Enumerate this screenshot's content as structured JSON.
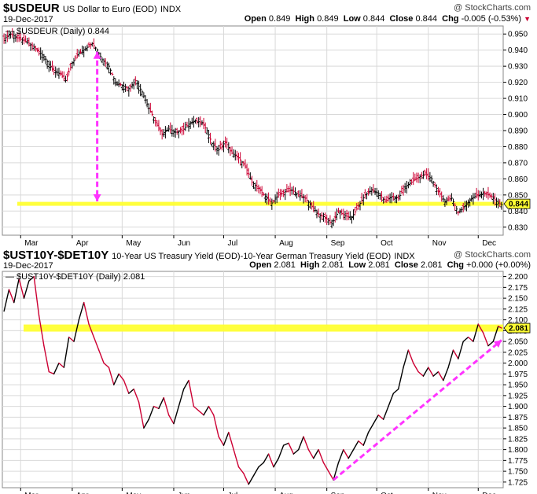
{
  "chart_data": [
    {
      "type": "ohlc",
      "symbol": "$USDEUR",
      "description": "US Dollar to Euro (EOD)",
      "exchange": "INDX",
      "date": "19-Dec-2017",
      "brand": "@ StockCharts.com",
      "ohlc": {
        "open_label": "Open",
        "open": "0.849",
        "high_label": "High",
        "high": "0.849",
        "low_label": "Low",
        "low": "0.844",
        "close_label": "Close",
        "close": "0.844",
        "chg_label": "Chg",
        "chg": "-0.005 (-0.53%)"
      },
      "legend": "$USDEUR (Daily) 0.844",
      "last_value": "0.844",
      "ylim": [
        0.825,
        0.955
      ],
      "yticks": [
        "0.830",
        "0.840",
        "0.850",
        "0.860",
        "0.870",
        "0.880",
        "0.890",
        "0.900",
        "0.910",
        "0.920",
        "0.930",
        "0.940",
        "0.950"
      ],
      "xticks": [
        {
          "label": "Mar",
          "day": 11
        },
        {
          "label": "Apr",
          "day": 42
        },
        {
          "label": "May",
          "day": 72
        },
        {
          "label": "Jun",
          "day": 103
        },
        {
          "label": "Jul",
          "day": 133
        },
        {
          "label": "Aug",
          "day": 164
        },
        {
          "label": "Sep",
          "day": 195
        },
        {
          "label": "Oct",
          "day": 225
        },
        {
          "label": "Nov",
          "day": 256
        },
        {
          "label": "Dec",
          "day": 286
        }
      ],
      "x_days": [
        0,
        301
      ],
      "series": [
        {
          "values": [
            {
              "d": 1,
              "v": 0.947
            },
            {
              "d": 5,
              "v": 0.95
            },
            {
              "d": 10,
              "v": 0.947
            },
            {
              "d": 15,
              "v": 0.945
            },
            {
              "d": 20,
              "v": 0.941
            },
            {
              "d": 25,
              "v": 0.936
            },
            {
              "d": 30,
              "v": 0.928
            },
            {
              "d": 35,
              "v": 0.925
            },
            {
              "d": 38,
              "v": 0.921
            },
            {
              "d": 42,
              "v": 0.932
            },
            {
              "d": 46,
              "v": 0.938
            },
            {
              "d": 50,
              "v": 0.941
            },
            {
              "d": 54,
              "v": 0.944
            },
            {
              "d": 57,
              "v": 0.94
            },
            {
              "d": 60,
              "v": 0.934
            },
            {
              "d": 64,
              "v": 0.93
            },
            {
              "d": 68,
              "v": 0.92
            },
            {
              "d": 72,
              "v": 0.918
            },
            {
              "d": 76,
              "v": 0.916
            },
            {
              "d": 80,
              "v": 0.921
            },
            {
              "d": 84,
              "v": 0.914
            },
            {
              "d": 88,
              "v": 0.904
            },
            {
              "d": 92,
              "v": 0.896
            },
            {
              "d": 96,
              "v": 0.888
            },
            {
              "d": 100,
              "v": 0.891
            },
            {
              "d": 104,
              "v": 0.889
            },
            {
              "d": 108,
              "v": 0.89
            },
            {
              "d": 112,
              "v": 0.894
            },
            {
              "d": 116,
              "v": 0.896
            },
            {
              "d": 120,
              "v": 0.895
            },
            {
              "d": 123,
              "v": 0.89
            },
            {
              "d": 126,
              "v": 0.882
            },
            {
              "d": 130,
              "v": 0.878
            },
            {
              "d": 134,
              "v": 0.883
            },
            {
              "d": 138,
              "v": 0.876
            },
            {
              "d": 142,
              "v": 0.873
            },
            {
              "d": 146,
              "v": 0.868
            },
            {
              "d": 150,
              "v": 0.858
            },
            {
              "d": 154,
              "v": 0.854
            },
            {
              "d": 158,
              "v": 0.849
            },
            {
              "d": 162,
              "v": 0.845
            },
            {
              "d": 166,
              "v": 0.85
            },
            {
              "d": 170,
              "v": 0.852
            },
            {
              "d": 174,
              "v": 0.853
            },
            {
              "d": 178,
              "v": 0.85
            },
            {
              "d": 182,
              "v": 0.848
            },
            {
              "d": 186,
              "v": 0.843
            },
            {
              "d": 190,
              "v": 0.838
            },
            {
              "d": 194,
              "v": 0.836
            },
            {
              "d": 198,
              "v": 0.832
            },
            {
              "d": 202,
              "v": 0.84
            },
            {
              "d": 206,
              "v": 0.837
            },
            {
              "d": 210,
              "v": 0.836
            },
            {
              "d": 214,
              "v": 0.843
            },
            {
              "d": 218,
              "v": 0.85
            },
            {
              "d": 222,
              "v": 0.853
            },
            {
              "d": 226,
              "v": 0.851
            },
            {
              "d": 230,
              "v": 0.846
            },
            {
              "d": 234,
              "v": 0.849
            },
            {
              "d": 238,
              "v": 0.848
            },
            {
              "d": 242,
              "v": 0.855
            },
            {
              "d": 246,
              "v": 0.858
            },
            {
              "d": 250,
              "v": 0.861
            },
            {
              "d": 254,
              "v": 0.863
            },
            {
              "d": 258,
              "v": 0.86
            },
            {
              "d": 262,
              "v": 0.852
            },
            {
              "d": 266,
              "v": 0.846
            },
            {
              "d": 270,
              "v": 0.848
            },
            {
              "d": 274,
              "v": 0.839
            },
            {
              "d": 278,
              "v": 0.843
            },
            {
              "d": 282,
              "v": 0.848
            },
            {
              "d": 286,
              "v": 0.85
            },
            {
              "d": 290,
              "v": 0.851
            },
            {
              "d": 294,
              "v": 0.849
            },
            {
              "d": 298,
              "v": 0.845
            },
            {
              "d": 300,
              "v": 0.844
            }
          ]
        }
      ],
      "annotations": {
        "support_line": {
          "value": 0.8445,
          "color": "#ffff33"
        },
        "arrow": {
          "day": 57,
          "from": 0.939,
          "to": 0.846,
          "color": "#ff33ff"
        }
      },
      "colors": {
        "up": "#000000",
        "down": "#cc0033",
        "grid": "#d9d9d9",
        "chg": "#cc0033"
      }
    },
    {
      "type": "line",
      "symbol": "$UST10Y-$DET10Y",
      "description": "10-Year US Treasury Yield (EOD)-10-Year German Treasury Yield (EOD)",
      "exchange": "INDX",
      "date": "19-Dec-2017",
      "brand": "@ StockCharts.com",
      "ohlc": {
        "open_label": "Open",
        "open": "2.081",
        "high_label": "High",
        "high": "2.081",
        "low_label": "Low",
        "low": "2.081",
        "close_label": "Close",
        "close": "2.081",
        "chg_label": "Chg",
        "chg": "+0.000 (+0.00%)"
      },
      "legend": "$UST10Y-$DET10Y (Daily) 2.081",
      "last_value": "2.081",
      "ylim": [
        1.712,
        2.212
      ],
      "yticks": [
        "1.725",
        "1.750",
        "1.775",
        "1.800",
        "1.825",
        "1.850",
        "1.875",
        "1.900",
        "1.925",
        "1.950",
        "1.975",
        "2.000",
        "2.025",
        "2.050",
        "2.075",
        "2.100",
        "2.125",
        "2.150",
        "2.175",
        "2.200"
      ],
      "xticks": [
        {
          "label": "Mar",
          "day": 11
        },
        {
          "label": "Apr",
          "day": 42
        },
        {
          "label": "May",
          "day": 72
        },
        {
          "label": "Jun",
          "day": 103
        },
        {
          "label": "Jul",
          "day": 133
        },
        {
          "label": "Aug",
          "day": 164
        },
        {
          "label": "Sep",
          "day": 195
        },
        {
          "label": "Oct",
          "day": 225
        },
        {
          "label": "Nov",
          "day": 256
        },
        {
          "label": "Dec",
          "day": 286
        }
      ],
      "x_days": [
        0,
        301
      ],
      "series": [
        {
          "values": [
            {
              "d": 1,
              "v": 2.12
            },
            {
              "d": 4,
              "v": 2.17
            },
            {
              "d": 7,
              "v": 2.14
            },
            {
              "d": 10,
              "v": 2.195
            },
            {
              "d": 13,
              "v": 2.15
            },
            {
              "d": 16,
              "v": 2.19
            },
            {
              "d": 19,
              "v": 2.2
            },
            {
              "d": 22,
              "v": 2.11
            },
            {
              "d": 25,
              "v": 2.04
            },
            {
              "d": 28,
              "v": 1.98
            },
            {
              "d": 31,
              "v": 1.975
            },
            {
              "d": 34,
              "v": 2.0
            },
            {
              "d": 37,
              "v": 1.99
            },
            {
              "d": 40,
              "v": 2.06
            },
            {
              "d": 43,
              "v": 2.05
            },
            {
              "d": 46,
              "v": 2.1
            },
            {
              "d": 49,
              "v": 2.14
            },
            {
              "d": 52,
              "v": 2.09
            },
            {
              "d": 55,
              "v": 2.06
            },
            {
              "d": 58,
              "v": 2.03
            },
            {
              "d": 61,
              "v": 2.0
            },
            {
              "d": 64,
              "v": 1.99
            },
            {
              "d": 67,
              "v": 1.95
            },
            {
              "d": 70,
              "v": 1.975
            },
            {
              "d": 73,
              "v": 1.96
            },
            {
              "d": 76,
              "v": 1.93
            },
            {
              "d": 79,
              "v": 1.94
            },
            {
              "d": 82,
              "v": 1.91
            },
            {
              "d": 85,
              "v": 1.85
            },
            {
              "d": 88,
              "v": 1.87
            },
            {
              "d": 91,
              "v": 1.9
            },
            {
              "d": 94,
              "v": 1.895
            },
            {
              "d": 97,
              "v": 1.92
            },
            {
              "d": 100,
              "v": 1.88
            },
            {
              "d": 103,
              "v": 1.86
            },
            {
              "d": 106,
              "v": 1.9
            },
            {
              "d": 109,
              "v": 1.94
            },
            {
              "d": 112,
              "v": 1.96
            },
            {
              "d": 115,
              "v": 1.9
            },
            {
              "d": 118,
              "v": 1.89
            },
            {
              "d": 121,
              "v": 1.88
            },
            {
              "d": 124,
              "v": 1.9
            },
            {
              "d": 127,
              "v": 1.88
            },
            {
              "d": 130,
              "v": 1.83
            },
            {
              "d": 133,
              "v": 1.81
            },
            {
              "d": 136,
              "v": 1.84
            },
            {
              "d": 139,
              "v": 1.8
            },
            {
              "d": 142,
              "v": 1.76
            },
            {
              "d": 145,
              "v": 1.745
            },
            {
              "d": 148,
              "v": 1.72
            },
            {
              "d": 151,
              "v": 1.74
            },
            {
              "d": 154,
              "v": 1.76
            },
            {
              "d": 157,
              "v": 1.77
            },
            {
              "d": 160,
              "v": 1.79
            },
            {
              "d": 163,
              "v": 1.76
            },
            {
              "d": 166,
              "v": 1.78
            },
            {
              "d": 169,
              "v": 1.81
            },
            {
              "d": 172,
              "v": 1.815
            },
            {
              "d": 175,
              "v": 1.79
            },
            {
              "d": 178,
              "v": 1.8
            },
            {
              "d": 181,
              "v": 1.83
            },
            {
              "d": 184,
              "v": 1.8
            },
            {
              "d": 187,
              "v": 1.78
            },
            {
              "d": 190,
              "v": 1.8
            },
            {
              "d": 193,
              "v": 1.77
            },
            {
              "d": 196,
              "v": 1.75
            },
            {
              "d": 199,
              "v": 1.73
            },
            {
              "d": 202,
              "v": 1.77
            },
            {
              "d": 205,
              "v": 1.8
            },
            {
              "d": 208,
              "v": 1.78
            },
            {
              "d": 211,
              "v": 1.8
            },
            {
              "d": 214,
              "v": 1.82
            },
            {
              "d": 217,
              "v": 1.81
            },
            {
              "d": 220,
              "v": 1.84
            },
            {
              "d": 223,
              "v": 1.86
            },
            {
              "d": 226,
              "v": 1.88
            },
            {
              "d": 229,
              "v": 1.87
            },
            {
              "d": 232,
              "v": 1.9
            },
            {
              "d": 235,
              "v": 1.93
            },
            {
              "d": 238,
              "v": 1.94
            },
            {
              "d": 241,
              "v": 1.99
            },
            {
              "d": 244,
              "v": 2.03
            },
            {
              "d": 247,
              "v": 2.0
            },
            {
              "d": 250,
              "v": 1.98
            },
            {
              "d": 253,
              "v": 1.97
            },
            {
              "d": 256,
              "v": 1.99
            },
            {
              "d": 259,
              "v": 1.97
            },
            {
              "d": 262,
              "v": 1.98
            },
            {
              "d": 265,
              "v": 1.96
            },
            {
              "d": 268,
              "v": 1.99
            },
            {
              "d": 271,
              "v": 2.03
            },
            {
              "d": 274,
              "v": 2.01
            },
            {
              "d": 277,
              "v": 2.05
            },
            {
              "d": 280,
              "v": 2.06
            },
            {
              "d": 283,
              "v": 2.05
            },
            {
              "d": 286,
              "v": 2.09
            },
            {
              "d": 289,
              "v": 2.07
            },
            {
              "d": 292,
              "v": 2.04
            },
            {
              "d": 295,
              "v": 2.05
            },
            {
              "d": 298,
              "v": 2.085
            },
            {
              "d": 300,
              "v": 2.081
            }
          ]
        }
      ],
      "annotations": {
        "support_line": {
          "value": 2.081,
          "color": "#ffff33"
        },
        "arrow": {
          "from_day": 199,
          "from": 1.73,
          "to_day": 300,
          "to": 2.053,
          "color": "#ff33ff"
        }
      },
      "colors": {
        "up": "#000000",
        "down": "#cc0033",
        "grid": "#d9d9d9",
        "chg": "#000000"
      }
    }
  ]
}
